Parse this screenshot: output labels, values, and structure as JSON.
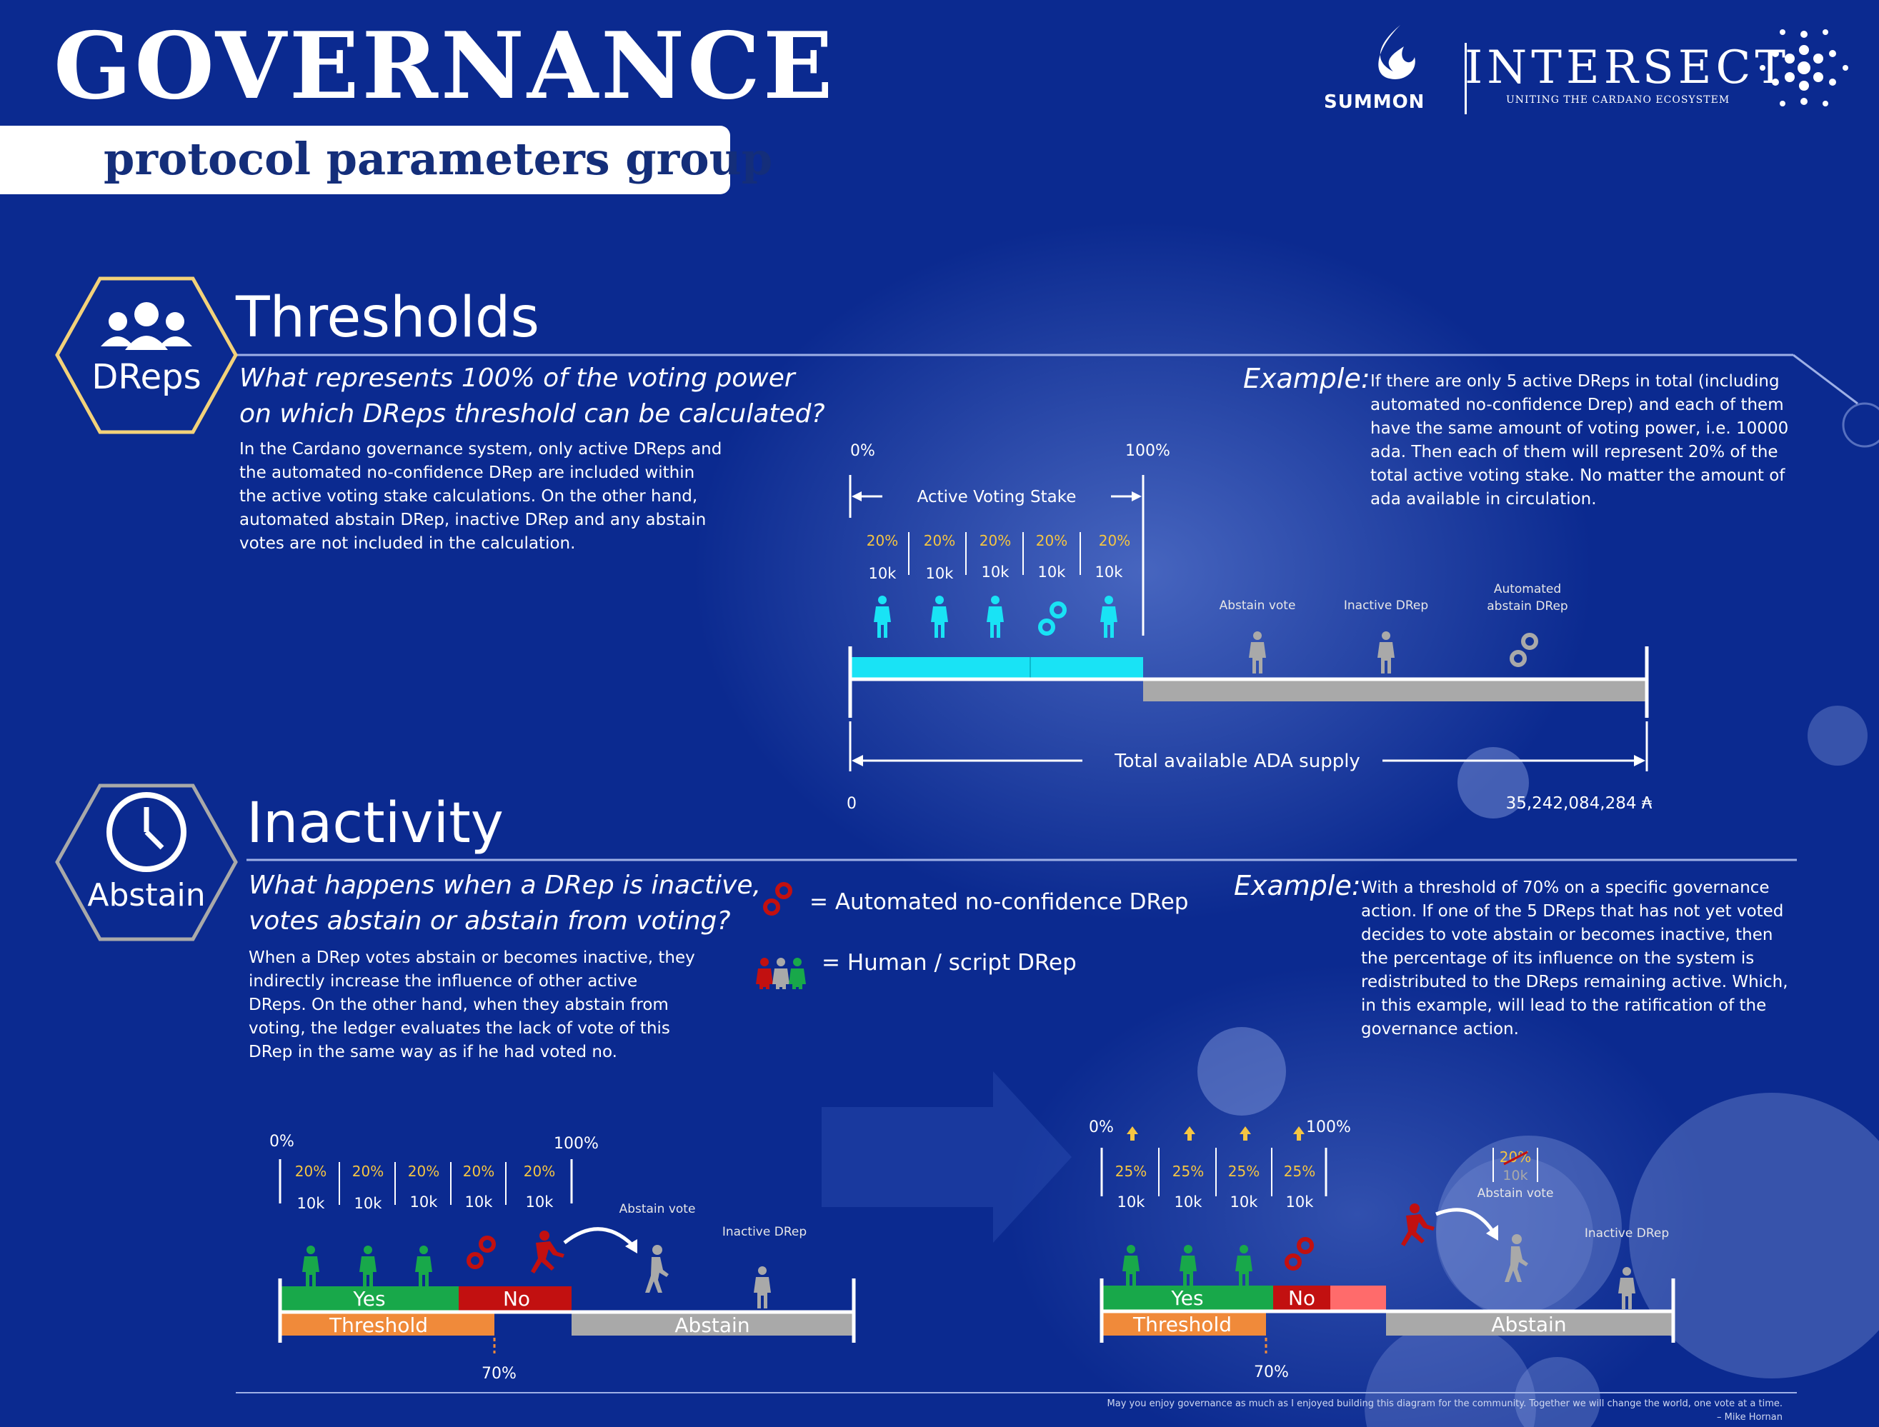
{
  "header": {
    "title": "GOVERNANCE",
    "subtitle": "protocol parameters group",
    "logos": {
      "summon": "SUMMON",
      "intersect": "INTERSECT",
      "intersect_tagline": "UNITING THE CARDANO ECOSYSTEM"
    }
  },
  "thresholds": {
    "badge": "DReps",
    "title": "Thresholds",
    "question_line1": "What represents 100% of the voting power",
    "question_line2": "on which DReps threshold can be calculated?",
    "body": [
      "In the Cardano governance system, only active DReps and",
      "the automated no-confidence DRep are included within",
      "the active voting stake calculations. On the other hand,",
      "automated abstain DRep, inactive DRep and any abstain",
      "votes are not included in the calculation."
    ],
    "example_label": "Example:",
    "example": [
      "If there are only 5 active DReps in total (including",
      "automated no-confidence Drep) and each of them",
      "have the same amount of voting power, i.e. 10000",
      "ada. Then each of them will represent 20% of the",
      "total active voting stake. No matter the amount of",
      "ada available in circulation."
    ],
    "diagram": {
      "start": "0%",
      "end": "100%",
      "stake_label": "Active Voting Stake",
      "dreps": [
        {
          "pct": "20%",
          "amt": "10k"
        },
        {
          "pct": "20%",
          "amt": "10k"
        },
        {
          "pct": "20%",
          "amt": "10k"
        },
        {
          "pct": "20%",
          "amt": "10k"
        },
        {
          "pct": "20%",
          "amt": "10k"
        }
      ],
      "abstain_vote": "Abstain vote",
      "inactive_drep": "Inactive DRep",
      "automated_abstain_1": "Automated",
      "automated_abstain_2": "abstain DRep",
      "supply_label": "Total available ADA supply",
      "supply_start": "0",
      "supply_end": "35,242,084,284 ₳"
    }
  },
  "inactivity": {
    "badge": "Abstain",
    "title": "Inactivity",
    "question_line1": "What happens when a DRep is inactive,",
    "question_line2": "votes abstain or abstain from voting?",
    "body": [
      "When a DRep votes abstain or becomes inactive, they",
      "indirectly increase the influence of other active",
      "DReps. On the other hand, when they abstain from",
      "voting, the ledger evaluates the lack of vote of this",
      "DRep in the same way as if he had voted no."
    ],
    "legend": {
      "auto": "= Automated no-confidence DRep",
      "human": "= Human / script DRep"
    },
    "example_label": "Example:",
    "example": [
      "With a threshold of 70% on a specific governance",
      "action. If one of the 5 DReps that has not yet voted",
      "decides to vote abstain or becomes inactive, then",
      "the percentage of its influence on the system is",
      "redistributed to the DReps remaining active. Which,",
      "in this example, will lead to the ratification of the",
      "governance action."
    ],
    "before": {
      "start": "0%",
      "end": "100%",
      "dreps": [
        {
          "pct": "20%",
          "amt": "10k"
        },
        {
          "pct": "20%",
          "amt": "10k"
        },
        {
          "pct": "20%",
          "amt": "10k"
        },
        {
          "pct": "20%",
          "amt": "10k"
        },
        {
          "pct": "20%",
          "amt": "10k"
        }
      ],
      "abstain_vote": "Abstain vote",
      "inactive_drep": "Inactive DRep",
      "yes": "Yes",
      "no": "No",
      "threshold": "Threshold",
      "abstain": "Abstain",
      "threshold_pct": "70%"
    },
    "after": {
      "start": "0%",
      "end": "100%",
      "dreps": [
        {
          "pct": "25%",
          "amt": "10k"
        },
        {
          "pct": "25%",
          "amt": "10k"
        },
        {
          "pct": "25%",
          "amt": "10k"
        },
        {
          "pct": "25%",
          "amt": "10k"
        }
      ],
      "struck_pct": "20%",
      "struck_amt": "10k",
      "abstain_vote": "Abstain vote",
      "inactive_drep": "Inactive DRep",
      "yes": "Yes",
      "no": "No",
      "threshold": "Threshold",
      "abstain": "Abstain",
      "threshold_pct": "70%"
    }
  },
  "footer": {
    "quote": "May you enjoy governance as much as I enjoyed building this diagram for the community. Together we will change the world, one vote at a time.",
    "author": "– Mike Hornan"
  },
  "colors": {
    "cyan": "#19e3f5",
    "green": "#18a84a",
    "red": "#c21010",
    "orange": "#f08a3a",
    "grey": "#a9a9a9",
    "gold": "#f5c542",
    "navy": "#0b2a90"
  }
}
